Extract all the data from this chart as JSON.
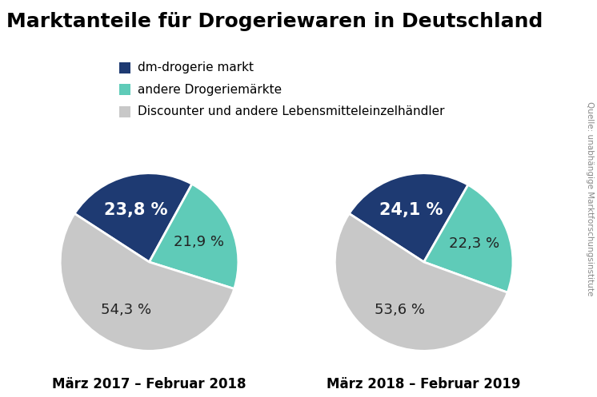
{
  "title": "Marktanteile für Drogeriewaren in Deutschland",
  "title_fontsize": 18,
  "legend_labels": [
    "dm-drogerie markt",
    "andere Drogeriemärkte",
    "Discounter und andere Lebensmitteleinzelhändler"
  ],
  "colors": [
    "#1e3a72",
    "#5fcbb8",
    "#c8c8c8"
  ],
  "pie1": {
    "values": [
      23.8,
      21.9,
      54.3
    ],
    "labels": [
      "23,8 %",
      "21,9 %",
      "54,3 %"
    ],
    "subtitle": "März 2017 – Februar 2018"
  },
  "pie2": {
    "values": [
      24.1,
      22.3,
      53.6
    ],
    "labels": [
      "24,1 %",
      "22,3 %",
      "53,6 %"
    ],
    "subtitle": "März 2018 – Februar 2019"
  },
  "source_text": "Quelle: unabhängige Marktforschungsinstitute",
  "background_color": "#ffffff",
  "label_fontsize_dm": 15,
  "label_fontsize_other": 13,
  "subtitle_fontsize": 12,
  "legend_fontsize": 11,
  "startangle": 147
}
